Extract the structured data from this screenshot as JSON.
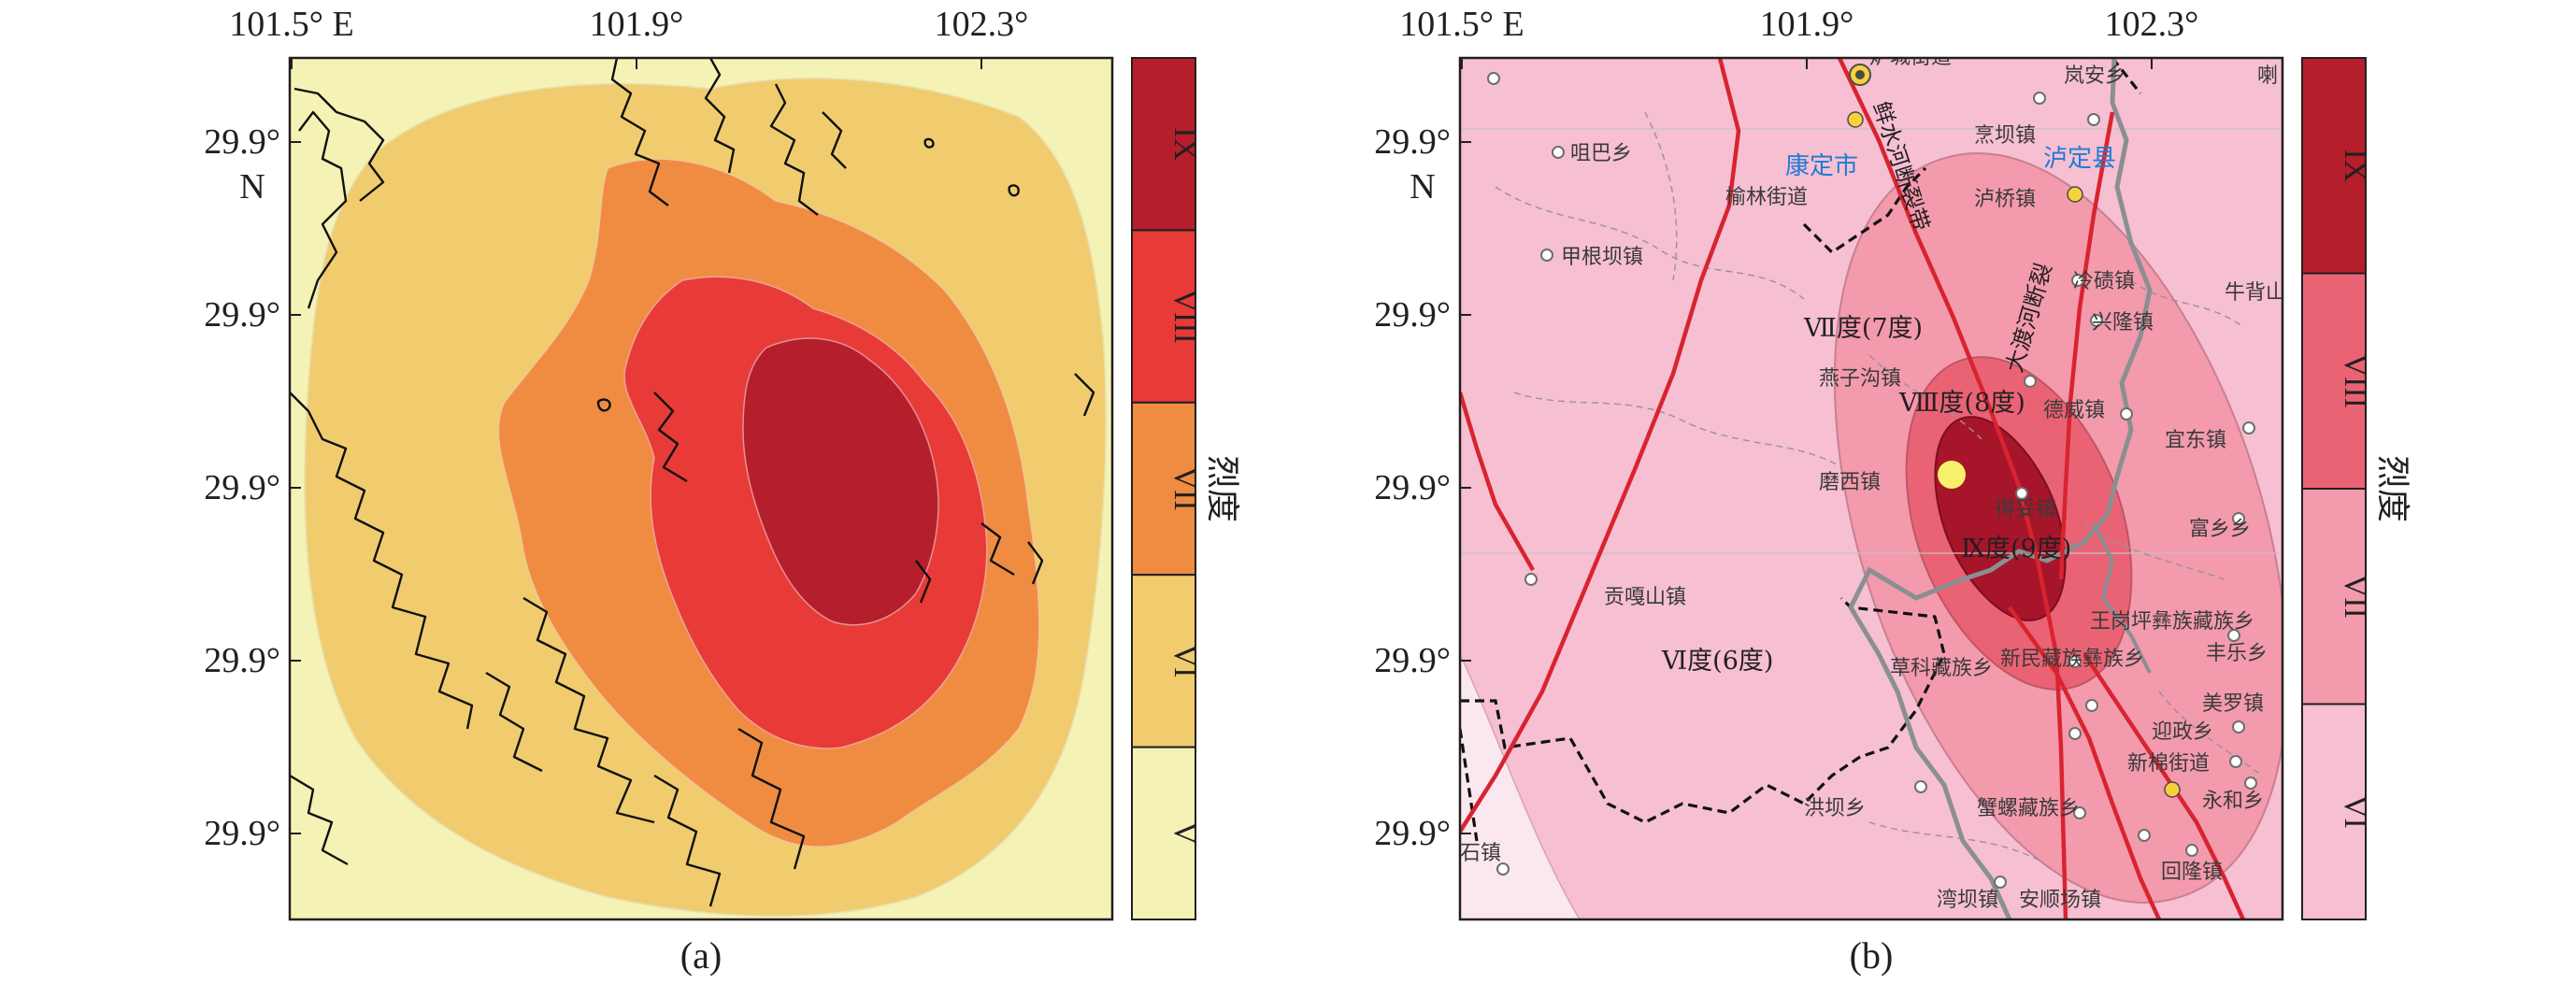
{
  "x_ticks": [
    "101.5° E",
    "101.9°",
    "102.3°"
  ],
  "y_ticks": [
    "29.9°",
    "29.9°",
    "29.9°",
    "29.9°",
    "29.9°"
  ],
  "y_unit": "N",
  "panel_a": {
    "caption": "(a)",
    "colors": {
      "V": "#f4f2b4",
      "VI": "#f0cc6f",
      "VII": "#f08c42",
      "VIII": "#e83b37",
      "IX": "#b51f2b"
    }
  },
  "panel_b": {
    "caption": "(b)",
    "colors": {
      "base": "#f6bfd2",
      "VII": "#f39aad",
      "VIII": "#ea6375",
      "IX": "#a7152a"
    },
    "zone_labels": {
      "VI": "Ⅵ度(6度)",
      "VII": "Ⅶ度(7度)",
      "VIII": "Ⅷ度(8度)",
      "IX": "Ⅸ度(9度)"
    },
    "cities": [
      "康定市",
      "泸定县"
    ],
    "places": [
      "炉城街道",
      "咀巴乡",
      "榆林街道",
      "甲根坝镇",
      "岚安乡",
      "喇",
      "烹坝镇",
      "泸桥镇",
      "冷碛镇",
      "兴隆镇",
      "牛背山",
      "燕子沟镇",
      "德威镇",
      "宜东镇",
      "磨西镇",
      "得妥镇",
      "富乡乡",
      "贡嘎山镇",
      "王岗坪彝族藏族乡",
      "丰乐乡",
      "草科藏族乡",
      "新民藏族彝族乡",
      "美罗镇",
      "迎政乡",
      "新棉街道",
      "永和乡",
      "洪坝乡",
      "蟹螺藏族乡",
      "回隆镇",
      "湾坝镇",
      "安顺场镇",
      "石镇"
    ],
    "faults": [
      "鲜水河断裂带",
      "大渡河断裂"
    ]
  },
  "colorbar_a": {
    "title": "烈度",
    "classes": [
      "IX",
      "VIII",
      "VII",
      "VI",
      "V"
    ],
    "colors": [
      "#b51f2b",
      "#e83b37",
      "#f08c42",
      "#f0cc6f",
      "#f4f2b4"
    ]
  },
  "colorbar_b": {
    "title": "烈度",
    "classes": [
      "IX",
      "VIII",
      "VII",
      "VI"
    ],
    "colors": [
      "#b51f2b",
      "#ea6375",
      "#f39aad",
      "#f6bfd2"
    ]
  }
}
